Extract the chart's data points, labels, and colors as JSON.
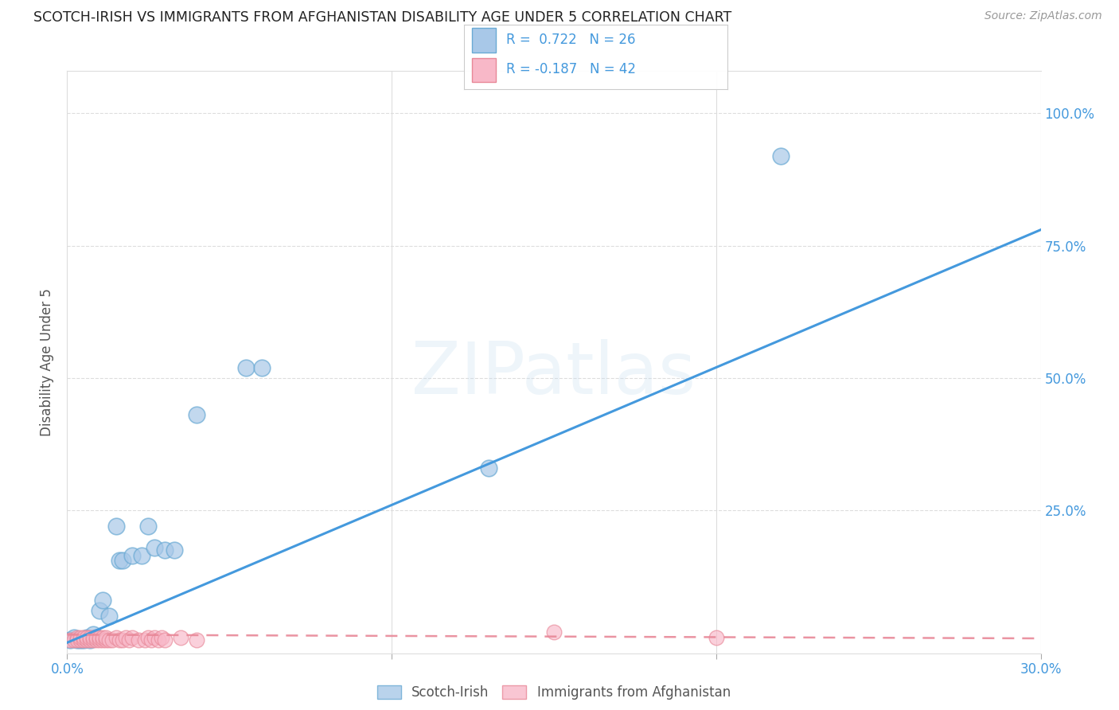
{
  "title": "SCOTCH-IRISH VS IMMIGRANTS FROM AFGHANISTAN DISABILITY AGE UNDER 5 CORRELATION CHART",
  "source": "Source: ZipAtlas.com",
  "ylabel": "Disability Age Under 5",
  "xlim": [
    0.0,
    0.3
  ],
  "ylim": [
    -0.02,
    1.08
  ],
  "blue_color": "#a8c8e8",
  "blue_edge_color": "#6aaad4",
  "blue_line_color": "#4499dd",
  "pink_color": "#f8b8c8",
  "pink_edge_color": "#e88898",
  "pink_line_color": "#e88898",
  "label_color": "#4499dd",
  "grid_color": "#dddddd",
  "scotch_irish_R": 0.722,
  "scotch_irish_N": 26,
  "afghanistan_R": -0.187,
  "afghanistan_N": 42,
  "watermark": "ZIPatlas",
  "scotch_irish_x": [
    0.001,
    0.002,
    0.003,
    0.004,
    0.005,
    0.006,
    0.007,
    0.008,
    0.009,
    0.01,
    0.011,
    0.013,
    0.015,
    0.016,
    0.017,
    0.02,
    0.023,
    0.025,
    0.027,
    0.03,
    0.033,
    0.04,
    0.055,
    0.06,
    0.13,
    0.22
  ],
  "scotch_irish_y": [
    0.005,
    0.01,
    0.005,
    0.005,
    0.005,
    0.01,
    0.005,
    0.015,
    0.01,
    0.06,
    0.08,
    0.05,
    0.22,
    0.155,
    0.155,
    0.165,
    0.165,
    0.22,
    0.18,
    0.175,
    0.175,
    0.43,
    0.52,
    0.52,
    0.33,
    0.92
  ],
  "afghanistan_x": [
    0.001,
    0.002,
    0.003,
    0.003,
    0.004,
    0.004,
    0.005,
    0.005,
    0.006,
    0.006,
    0.007,
    0.007,
    0.008,
    0.008,
    0.009,
    0.009,
    0.01,
    0.01,
    0.011,
    0.011,
    0.012,
    0.012,
    0.013,
    0.014,
    0.015,
    0.016,
    0.017,
    0.018,
    0.019,
    0.02,
    0.022,
    0.024,
    0.025,
    0.026,
    0.027,
    0.028,
    0.029,
    0.03,
    0.035,
    0.04,
    0.15,
    0.2
  ],
  "afghanistan_y": [
    0.005,
    0.005,
    0.01,
    0.005,
    0.005,
    0.01,
    0.005,
    0.01,
    0.005,
    0.01,
    0.005,
    0.01,
    0.005,
    0.01,
    0.005,
    0.01,
    0.005,
    0.01,
    0.005,
    0.01,
    0.005,
    0.01,
    0.005,
    0.005,
    0.01,
    0.005,
    0.005,
    0.01,
    0.005,
    0.01,
    0.005,
    0.005,
    0.01,
    0.005,
    0.01,
    0.005,
    0.01,
    0.005,
    0.01,
    0.005,
    0.02,
    0.01
  ],
  "si_line_x": [
    0.0,
    0.3
  ],
  "si_line_y": [
    0.0,
    0.78
  ],
  "af_line_x": [
    0.0,
    0.3
  ],
  "af_line_y": [
    0.015,
    0.008
  ]
}
